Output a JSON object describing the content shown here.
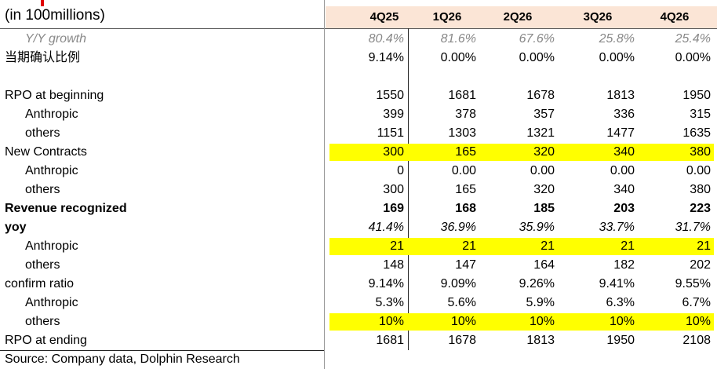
{
  "title": "(in 100millions)",
  "columns": [
    "4Q25",
    "1Q26",
    "2Q26",
    "3Q26",
    "4Q26"
  ],
  "rows": [
    {
      "label": "Y/Y growth",
      "level": 1,
      "style": "muted",
      "values": [
        "80.4%",
        "81.6%",
        "67.6%",
        "25.8%",
        "25.4%"
      ]
    },
    {
      "label": "当期确认比例",
      "level": 0,
      "values": [
        "9.14%",
        "0.00%",
        "0.00%",
        "0.00%",
        "0.00%"
      ]
    },
    {
      "label": "RPO at beginning",
      "level": 0,
      "values": [
        "1550",
        "1681",
        "1678",
        "1813",
        "1950"
      ]
    },
    {
      "label": "Anthropic",
      "level": 1,
      "values": [
        "399",
        "378",
        "357",
        "336",
        "315"
      ]
    },
    {
      "label": "others",
      "level": 1,
      "values": [
        "1151",
        "1303",
        "1321",
        "1477",
        "1635"
      ]
    },
    {
      "label": "New Contracts",
      "level": 0,
      "highlight": true,
      "values": [
        "300",
        "165",
        "320",
        "340",
        "380"
      ]
    },
    {
      "label": "Anthropic",
      "level": 1,
      "values": [
        "0",
        "0.00",
        "0.00",
        "0.00",
        "0.00"
      ]
    },
    {
      "label": "others",
      "level": 1,
      "values": [
        "300",
        "165",
        "320",
        "340",
        "380"
      ]
    },
    {
      "label": "Revenue recognized",
      "level": 0,
      "style": "bold",
      "values": [
        "169",
        "168",
        "185",
        "203",
        "223"
      ]
    },
    {
      "label": "yoy",
      "level": 0,
      "style": "bold-label-italic-values",
      "values": [
        "41.4%",
        "36.9%",
        "35.9%",
        "33.7%",
        "31.7%"
      ]
    },
    {
      "label": "Anthropic",
      "level": 1,
      "highlight": true,
      "values": [
        "21",
        "21",
        "21",
        "21",
        "21"
      ]
    },
    {
      "label": "others",
      "level": 1,
      "values": [
        "148",
        "147",
        "164",
        "182",
        "202"
      ]
    },
    {
      "label": "confirm ratio",
      "level": 0,
      "values": [
        "9.14%",
        "9.09%",
        "9.26%",
        "9.41%",
        "9.55%"
      ]
    },
    {
      "label": "Anthropic",
      "level": 1,
      "values": [
        "5.3%",
        "5.6%",
        "5.9%",
        "6.3%",
        "6.7%"
      ]
    },
    {
      "label": "others",
      "level": 1,
      "highlight": true,
      "values": [
        "10%",
        "10%",
        "10%",
        "10%",
        "10%"
      ]
    },
    {
      "label": "RPO at ending",
      "level": 0,
      "values": [
        "1681",
        "1678",
        "1813",
        "1950",
        "2108"
      ]
    }
  ],
  "source": "Source: Company data, Dolphin Research"
}
